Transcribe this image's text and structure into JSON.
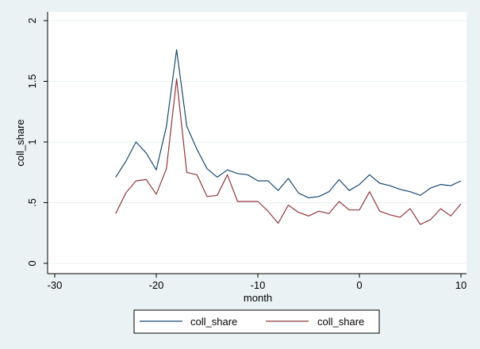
{
  "chart_data": {
    "type": "line",
    "xlabel": "month",
    "ylabel": "coll_share",
    "xlim": [
      -31,
      11
    ],
    "ylim": [
      0,
      2
    ],
    "xticks": [
      {
        "value": -30,
        "label": "-30"
      },
      {
        "value": -20,
        "label": "-20"
      },
      {
        "value": -10,
        "label": "-10"
      },
      {
        "value": 0,
        "label": "0"
      },
      {
        "value": 10,
        "label": "10"
      }
    ],
    "yticks": [
      {
        "value": 0,
        "label": "0"
      },
      {
        "value": 0.5,
        "label": ".5"
      },
      {
        "value": 1,
        "label": "1"
      },
      {
        "value": 1.5,
        "label": "1.5"
      },
      {
        "value": 2,
        "label": "2"
      }
    ],
    "grid": true,
    "legend_position": "bottom",
    "x": [
      -24,
      -23,
      -22,
      -21,
      -20,
      -19,
      -18,
      -17,
      -16,
      -15,
      -14,
      -13,
      -12,
      -11,
      -10,
      -9,
      -8,
      -7,
      -6,
      -5,
      -4,
      -3,
      -2,
      -1,
      0,
      1,
      2,
      3,
      4,
      5,
      6,
      7,
      8,
      9,
      10
    ],
    "series": [
      {
        "name": "coll_share",
        "color": "#1a476f",
        "values": [
          0.71,
          0.84,
          1.0,
          0.91,
          0.77,
          1.13,
          1.76,
          1.13,
          0.94,
          0.78,
          0.71,
          0.77,
          0.74,
          0.73,
          0.68,
          0.68,
          0.6,
          0.7,
          0.58,
          0.54,
          0.55,
          0.59,
          0.69,
          0.6,
          0.65,
          0.73,
          0.66,
          0.64,
          0.61,
          0.59,
          0.56,
          0.62,
          0.65,
          0.64,
          0.68
        ]
      },
      {
        "name": "coll_share",
        "color": "#90353b",
        "values": [
          0.41,
          0.58,
          0.68,
          0.69,
          0.57,
          0.78,
          1.52,
          0.75,
          0.73,
          0.55,
          0.56,
          0.73,
          0.51,
          0.51,
          0.51,
          0.43,
          0.33,
          0.48,
          0.42,
          0.39,
          0.43,
          0.41,
          0.51,
          0.44,
          0.44,
          0.59,
          0.43,
          0.4,
          0.38,
          0.45,
          0.32,
          0.36,
          0.45,
          0.39,
          0.49
        ]
      }
    ]
  }
}
